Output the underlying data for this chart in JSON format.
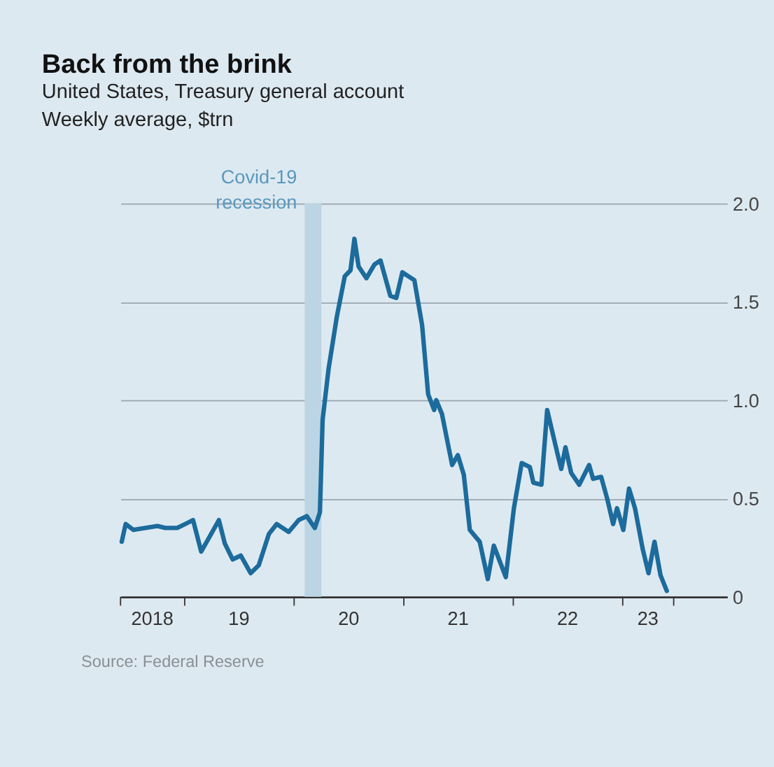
{
  "chart_data": {
    "type": "line",
    "title": "Back from the brink",
    "subtitle": "United States, Treasury general account",
    "ylabel": "Weekly average, $trn",
    "annotations": [
      "Source: Federal Reserve"
    ],
    "x": [
      "2018-06-05",
      "2018-06-18",
      "2018-07-14",
      "2018-08-23",
      "2018-10-02",
      "2018-10-28",
      "2018-12-07",
      "2019-01-16",
      "2019-01-29",
      "2019-02-25",
      "2019-03-23",
      "2019-04-25",
      "2019-05-15",
      "2019-06-10",
      "2019-07-07",
      "2019-08-09",
      "2019-09-05",
      "2019-10-09",
      "2019-11-04",
      "2019-12-14",
      "2020-01-16",
      "2020-02-12",
      "2020-03-10",
      "2020-03-27",
      "2020-04-05",
      "2020-04-25",
      "2020-05-22",
      "2020-06-18",
      "2020-07-07",
      "2020-07-20",
      "2020-08-03",
      "2020-08-29",
      "2020-09-25",
      "2020-10-15",
      "2020-11-17",
      "2020-12-07",
      "2020-12-27",
      "2021-02-05",
      "2021-03-03",
      "2021-03-23",
      "2021-04-12",
      "2021-04-19",
      "2021-05-08",
      "2021-06-11",
      "2021-06-30",
      "2021-07-20",
      "2021-08-09",
      "2021-09-11",
      "2021-10-08",
      "2021-10-28",
      "2021-12-07",
      "2022-01-03",
      "2022-01-29",
      "2022-02-25",
      "2022-03-09",
      "2022-04-05",
      "2022-04-24",
      "2022-05-28",
      "2022-06-10",
      "2022-06-24",
      "2022-07-13",
      "2022-08-09",
      "2022-09-11",
      "2022-09-24",
      "2022-10-21",
      "2022-11-10",
      "2022-11-30",
      "2022-12-13",
      "2023-01-03",
      "2023-01-22",
      "2023-02-11",
      "2023-03-09",
      "2023-03-28",
      "2023-04-17",
      "2023-05-07",
      "2023-05-28"
    ],
    "series": [
      {
        "color": "#1c6b9c",
        "values": [
          0.28,
          0.37,
          0.34,
          0.35,
          0.36,
          0.35,
          0.35,
          0.38,
          0.39,
          0.23,
          0.3,
          0.39,
          0.27,
          0.19,
          0.21,
          0.12,
          0.16,
          0.32,
          0.37,
          0.33,
          0.39,
          0.41,
          0.35,
          0.43,
          0.9,
          1.16,
          1.42,
          1.63,
          1.66,
          1.82,
          1.68,
          1.62,
          1.69,
          1.71,
          1.53,
          1.52,
          1.65,
          1.61,
          1.38,
          1.03,
          0.95,
          1.0,
          0.93,
          0.67,
          0.72,
          0.62,
          0.34,
          0.28,
          0.09,
          0.26,
          0.1,
          0.45,
          0.68,
          0.66,
          0.58,
          0.57,
          0.95,
          0.73,
          0.65,
          0.76,
          0.63,
          0.57,
          0.67,
          0.6,
          0.61,
          0.5,
          0.37,
          0.45,
          0.34,
          0.55,
          0.45,
          0.24,
          0.12,
          0.28,
          0.11,
          0.03
        ]
      }
    ],
    "xlim": [
      "2018-06-01",
      "2023-12-15"
    ],
    "xticks": [
      {
        "value": "2018-06-01",
        "label": null
      },
      {
        "value": "2018-09-15",
        "label": "2018"
      },
      {
        "value": "2019-01-01",
        "label": null
      },
      {
        "value": "2019-07-01",
        "label": "19"
      },
      {
        "value": "2020-01-01",
        "label": null
      },
      {
        "value": "2020-07-01",
        "label": "20"
      },
      {
        "value": "2021-01-01",
        "label": null
      },
      {
        "value": "2021-07-01",
        "label": "21"
      },
      {
        "value": "2022-01-01",
        "label": null
      },
      {
        "value": "2022-07-01",
        "label": "22"
      },
      {
        "value": "2023-01-01",
        "label": null
      },
      {
        "value": "2023-03-26",
        "label": "23"
      },
      {
        "value": "2023-06-20",
        "label": null
      }
    ],
    "ylim": [
      0,
      2.0
    ],
    "yticks": [
      {
        "value": 0,
        "label": "0"
      },
      {
        "value": 0.5,
        "label": "0.5"
      },
      {
        "value": 1,
        "label": "1.0"
      },
      {
        "value": 1.5,
        "label": "1.5"
      },
      {
        "value": 2,
        "label": "2.0"
      }
    ],
    "grid": "y",
    "marker": "none",
    "line_style": "solid",
    "bands": [
      {
        "axis": "x",
        "from": "2020-02-05",
        "to": "2020-04-01",
        "label": "Covid-19 recession",
        "color": "#bcd5e4"
      }
    ]
  }
}
